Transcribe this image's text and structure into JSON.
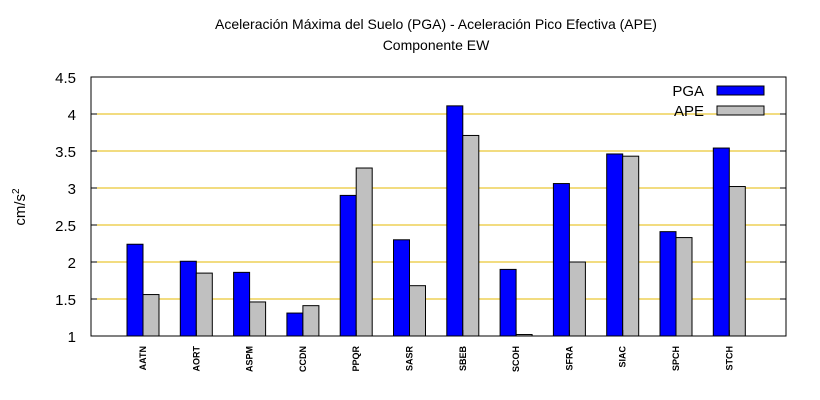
{
  "chart_data": {
    "type": "bar",
    "title": "Aceleración Máxima del Suelo (PGA) -  Aceleración Pico Efectiva (APE)",
    "subtitle": "Componente EW",
    "ylabel_base": "cm/s",
    "ylabel_exp": "2",
    "ylim": [
      1,
      4.5
    ],
    "yticks": [
      "1",
      "1.5",
      "2",
      "2.5",
      "3",
      "3.5",
      "4",
      "4.5"
    ],
    "grid": true,
    "legend_position": "top-right",
    "categories": [
      "AATN",
      "AORT",
      "ASPM",
      "CCDN",
      "PPQR",
      "SASR",
      "SBEB",
      "SCOH",
      "SFRA",
      "SIAC",
      "SPCH",
      "STCH"
    ],
    "series": [
      {
        "name": "PGA",
        "color": "#0000ff",
        "values": [
          2.24,
          2.01,
          1.86,
          1.31,
          2.9,
          2.3,
          4.11,
          1.9,
          3.06,
          3.46,
          2.41,
          3.54
        ]
      },
      {
        "name": "APE",
        "color": "#c0c0c0",
        "values": [
          1.56,
          1.85,
          1.46,
          1.41,
          3.27,
          1.68,
          3.71,
          1.02,
          2.0,
          3.43,
          2.33,
          3.02
        ]
      }
    ],
    "grid_color": "#e6b800"
  }
}
